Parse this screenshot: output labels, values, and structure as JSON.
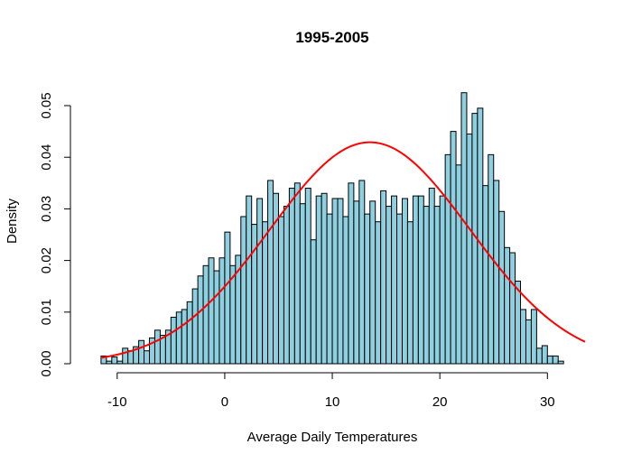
{
  "chart_data": {
    "type": "bar",
    "subtype": "histogram",
    "title": "1995-2005",
    "xlabel": "Average Daily Temperatures",
    "ylabel": "Density",
    "xlim": [
      -12.5,
      33.5
    ],
    "ylim": [
      0,
      0.0535
    ],
    "x_ticks": [
      -10,
      0,
      10,
      20,
      30
    ],
    "x_tick_labels": [
      "-10",
      "0",
      "10",
      "20",
      "30"
    ],
    "y_ticks": [
      0.0,
      0.01,
      0.02,
      0.03,
      0.04,
      0.05
    ],
    "y_tick_labels": [
      "0.00",
      "0.01",
      "0.02",
      "0.03",
      "0.04",
      "0.05"
    ],
    "grid": false,
    "legend": "none",
    "bar_color": "#8ecfe0",
    "bin_start": -11.5,
    "bin_width": 0.5,
    "densities": [
      0.0015,
      0.0005,
      0.0013,
      0.0005,
      0.003,
      0.0025,
      0.0033,
      0.0045,
      0.0025,
      0.005,
      0.0065,
      0.0055,
      0.0065,
      0.009,
      0.01,
      0.0105,
      0.012,
      0.0145,
      0.017,
      0.019,
      0.0205,
      0.018,
      0.0205,
      0.0255,
      0.019,
      0.021,
      0.0285,
      0.0325,
      0.027,
      0.032,
      0.0275,
      0.0355,
      0.033,
      0.0285,
      0.0305,
      0.034,
      0.035,
      0.031,
      0.034,
      0.024,
      0.0325,
      0.033,
      0.029,
      0.032,
      0.032,
      0.0285,
      0.035,
      0.0315,
      0.0355,
      0.029,
      0.0315,
      0.0275,
      0.0335,
      0.0305,
      0.0325,
      0.029,
      0.032,
      0.0275,
      0.0325,
      0.0325,
      0.0305,
      0.034,
      0.0305,
      0.0325,
      0.0405,
      0.045,
      0.0385,
      0.0525,
      0.0445,
      0.0485,
      0.0495,
      0.0345,
      0.0405,
      0.0355,
      0.0295,
      0.0225,
      0.0215,
      0.016,
      0.0105,
      0.0085,
      0.0105,
      0.003,
      0.0035,
      0.0015,
      0.0015,
      0.0005
    ],
    "normal_curve": {
      "color": "#ff0000",
      "mean": 13.5,
      "sd": 9.3
    }
  }
}
